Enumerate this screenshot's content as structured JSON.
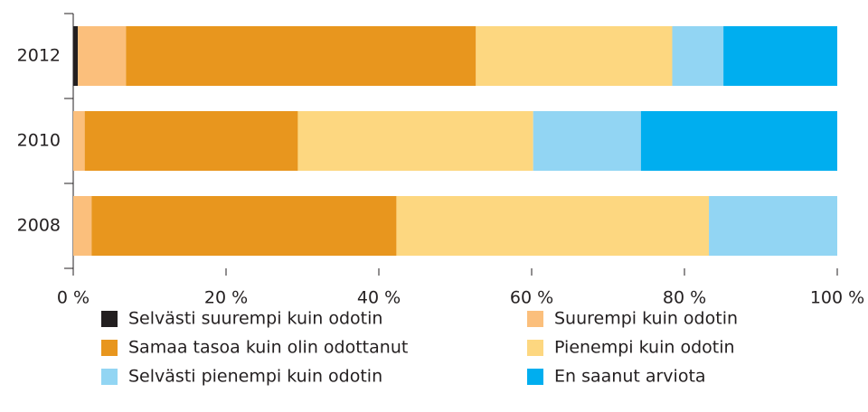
{
  "chart_data": {
    "type": "stacked_barh",
    "categories": [
      "2012",
      "2010",
      "2008"
    ],
    "series": [
      {
        "name": "Selvästi suurempi kuin odotin",
        "color": "#231f20",
        "values": [
          0.6,
          0,
          0
        ]
      },
      {
        "name": "Suurempi kuin odotin",
        "color": "#fbbf7c",
        "values": [
          6.3,
          1.5,
          2.4
        ]
      },
      {
        "name": "Samaa tasoa kuin olin odottanut",
        "color": "#e8961e",
        "values": [
          45.8,
          27.9,
          39.9
        ]
      },
      {
        "name": "Pienempi kuin odotin",
        "color": "#fdd780",
        "values": [
          25.7,
          30.8,
          40.9
        ]
      },
      {
        "name": "Selvästi pienempi kuin odotin",
        "color": "#92d5f3",
        "values": [
          6.7,
          14.1,
          16.8
        ]
      },
      {
        "name": "En saanut arviota",
        "color": "#00aeef",
        "values": [
          14.9,
          25.7,
          0
        ]
      }
    ],
    "xlim": [
      0,
      100
    ],
    "xticks": [
      {
        "value": 0,
        "label": "0 %"
      },
      {
        "value": 20,
        "label": "20 %"
      },
      {
        "value": 40,
        "label": "40 %"
      },
      {
        "value": 60,
        "label": "60 %"
      },
      {
        "value": 80,
        "label": "80 %"
      },
      {
        "value": 100,
        "label": "100 %"
      }
    ],
    "legend": "bottom"
  }
}
